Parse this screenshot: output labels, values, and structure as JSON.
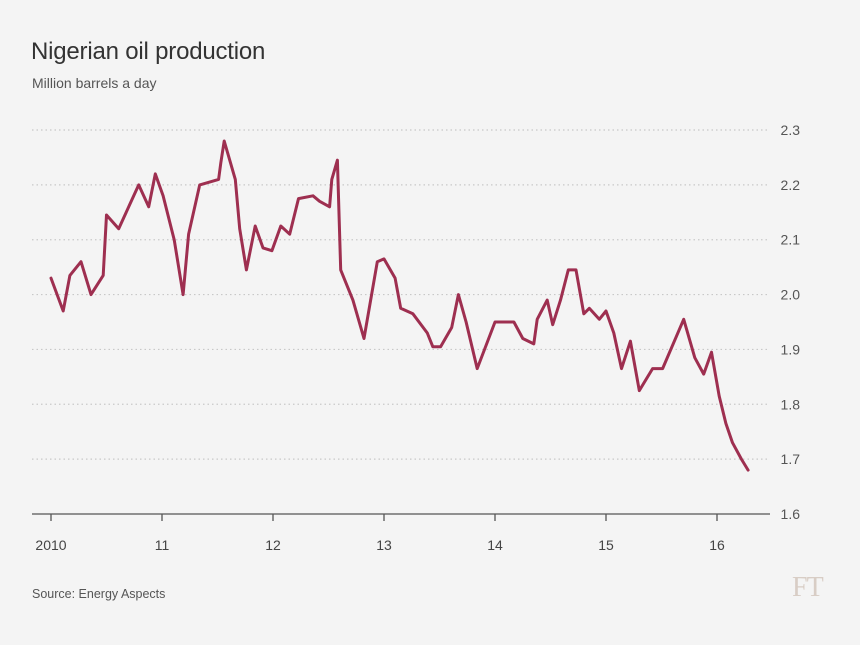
{
  "title": "Nigerian oil production",
  "subtitle": "Million barrels a day",
  "source": "Source: Energy Aspects",
  "logo": "FT",
  "colors": {
    "line": "#9e2f50",
    "grid": "#c8c8c8",
    "axis": "#555555",
    "text": "#555555"
  },
  "chart_data": {
    "type": "line",
    "title": "Nigerian oil production",
    "ylabel": "Million barrels a day",
    "xlabel": "",
    "xlim": [
      2010,
      2016.4
    ],
    "ylim": [
      1.6,
      2.3
    ],
    "y_ticks": [
      1.6,
      1.7,
      1.8,
      1.9,
      2.0,
      2.1,
      2.2,
      2.3
    ],
    "y_tick_labels": [
      "1.6",
      "1.7",
      "1.8",
      "1.9",
      "2.0",
      "2.1",
      "2.2",
      "2.3"
    ],
    "x_ticks": [
      2010,
      2011,
      2012,
      2013,
      2014,
      2015,
      2016
    ],
    "x_tick_labels": [
      "2010",
      "11",
      "12",
      "13",
      "14",
      "15",
      "16"
    ],
    "grid": true,
    "series": [
      {
        "name": "Nigerian oil production",
        "x": [
          2010.0,
          2010.11,
          2010.17,
          2010.27,
          2010.36,
          2010.47,
          2010.5,
          2010.61,
          2010.79,
          2010.88,
          2010.94,
          2011.01,
          2011.11,
          2011.19,
          2011.24,
          2011.34,
          2011.51,
          2011.53,
          2011.56,
          2011.66,
          2011.7,
          2011.76,
          2011.84,
          2011.91,
          2011.99,
          2012.07,
          2012.15,
          2012.23,
          2012.36,
          2012.42,
          2012.51,
          2012.53,
          2012.58,
          2012.61,
          2012.72,
          2012.82,
          2012.94,
          2013.0,
          2013.1,
          2013.15,
          2013.26,
          2013.39,
          2013.44,
          2013.51,
          2013.61,
          2013.67,
          2013.74,
          2013.84,
          2014.0,
          2014.17,
          2014.25,
          2014.35,
          2014.38,
          2014.47,
          2014.52,
          2014.59,
          2014.66,
          2014.73,
          2014.8,
          2014.85,
          2014.94,
          2015.0,
          2015.07,
          2015.14,
          2015.22,
          2015.3,
          2015.42,
          2015.51,
          2015.7,
          2015.8,
          2015.88,
          2015.95,
          2016.02,
          2016.08,
          2016.14,
          2016.22,
          2016.28
        ],
        "values": [
          2.03,
          1.97,
          2.035,
          2.06,
          2.0,
          2.035,
          2.145,
          2.12,
          2.2,
          2.16,
          2.22,
          2.18,
          2.1,
          2.0,
          2.11,
          2.2,
          2.21,
          2.24,
          2.28,
          2.21,
          2.12,
          2.045,
          2.125,
          2.085,
          2.08,
          2.125,
          2.11,
          2.175,
          2.18,
          2.17,
          2.16,
          2.21,
          2.245,
          2.045,
          1.99,
          1.92,
          2.06,
          2.065,
          2.03,
          1.975,
          1.965,
          1.93,
          1.905,
          1.905,
          1.94,
          2.0,
          1.95,
          1.865,
          1.95,
          1.95,
          1.92,
          1.91,
          1.955,
          1.99,
          1.945,
          1.99,
          2.045,
          2.045,
          1.965,
          1.975,
          1.955,
          1.97,
          1.93,
          1.865,
          1.915,
          1.825,
          1.865,
          1.865,
          1.955,
          1.885,
          1.855,
          1.895,
          1.815,
          1.765,
          1.73,
          1.7,
          1.68
        ]
      }
    ]
  }
}
